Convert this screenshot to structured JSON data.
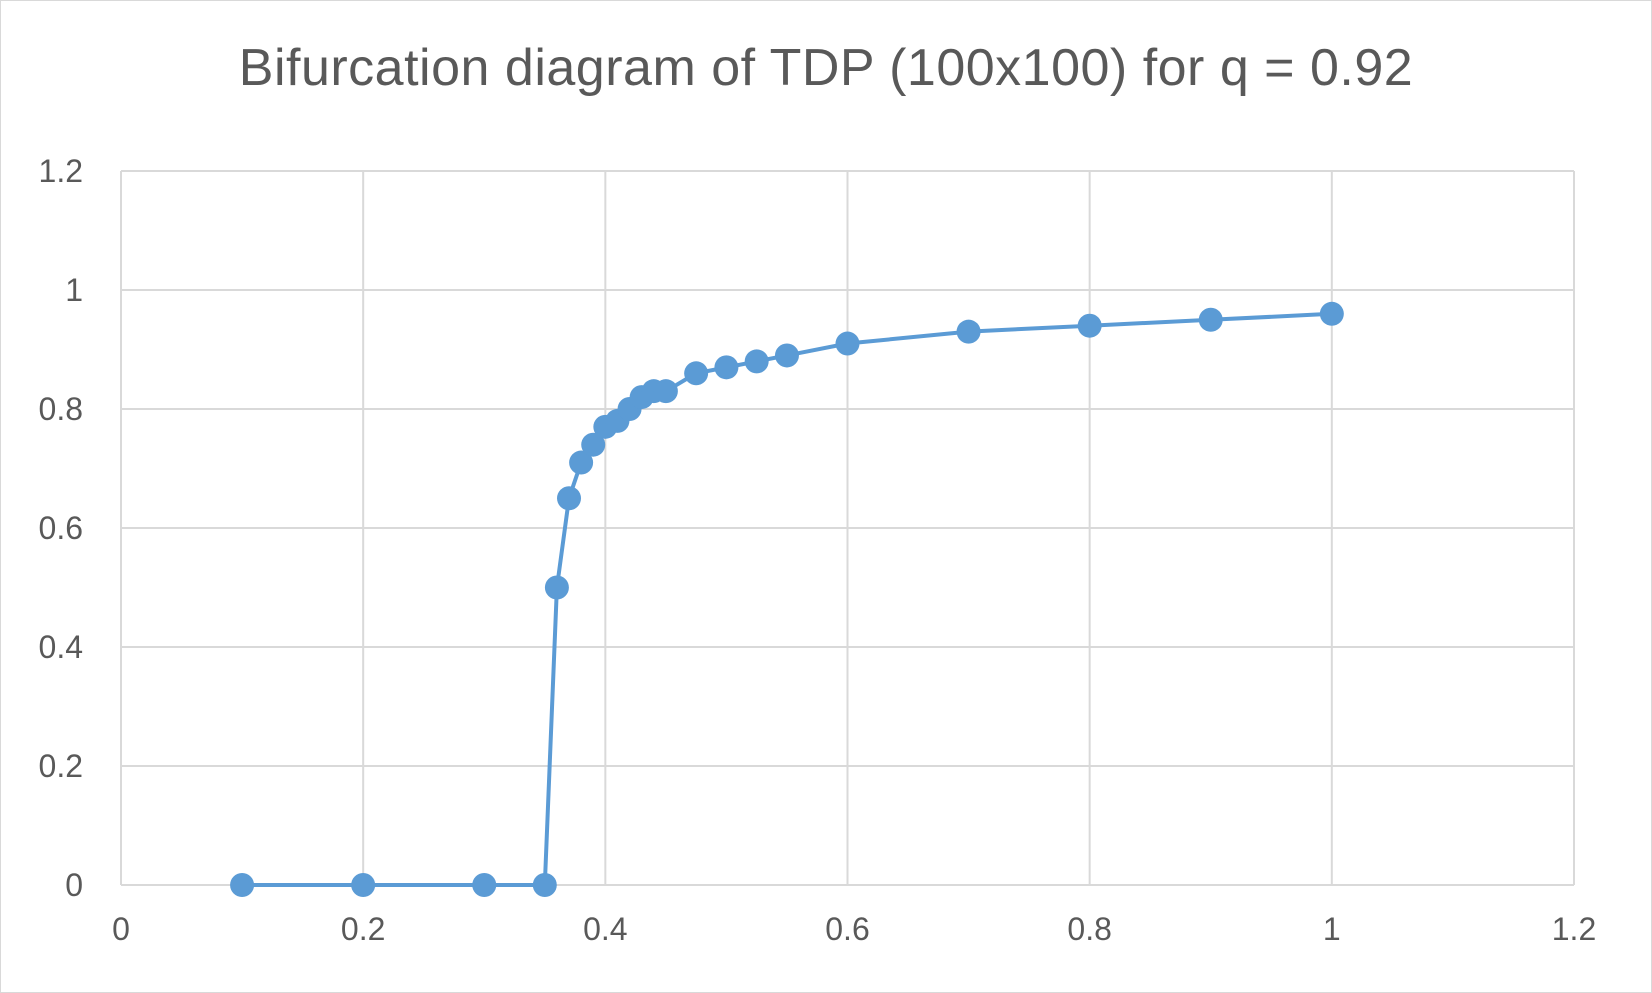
{
  "chart_data": {
    "type": "scatter",
    "title": "Bifurcation diagram of TDP (100x100) for q = 0.92",
    "xlabel": "",
    "ylabel": "",
    "xlim": [
      0,
      1.2
    ],
    "ylim": [
      0,
      1.2
    ],
    "x_ticks": [
      "0",
      "0.2",
      "0.4",
      "0.6",
      "0.8",
      "1",
      "1.2"
    ],
    "y_ticks": [
      "0",
      "0.2",
      "0.4",
      "0.6",
      "0.8",
      "1",
      "1.2"
    ],
    "grid": true,
    "legend": "none",
    "series_style": "straight lines with markers",
    "color": "#5b9bd5",
    "series": [
      {
        "x": [
          0.1,
          0.2,
          0.3,
          0.35,
          0.36,
          0.37,
          0.38,
          0.39,
          0.4,
          0.41,
          0.42,
          0.43,
          0.44,
          0.45,
          0.475,
          0.5,
          0.525,
          0.55,
          0.6,
          0.7,
          0.8,
          0.9,
          1.0
        ],
        "y": [
          0,
          0,
          0,
          0,
          0.5,
          0.65,
          0.71,
          0.74,
          0.77,
          0.78,
          0.8,
          0.82,
          0.83,
          0.83,
          0.86,
          0.87,
          0.88,
          0.89,
          0.91,
          0.93,
          0.94,
          0.95,
          0.96
        ]
      }
    ]
  }
}
